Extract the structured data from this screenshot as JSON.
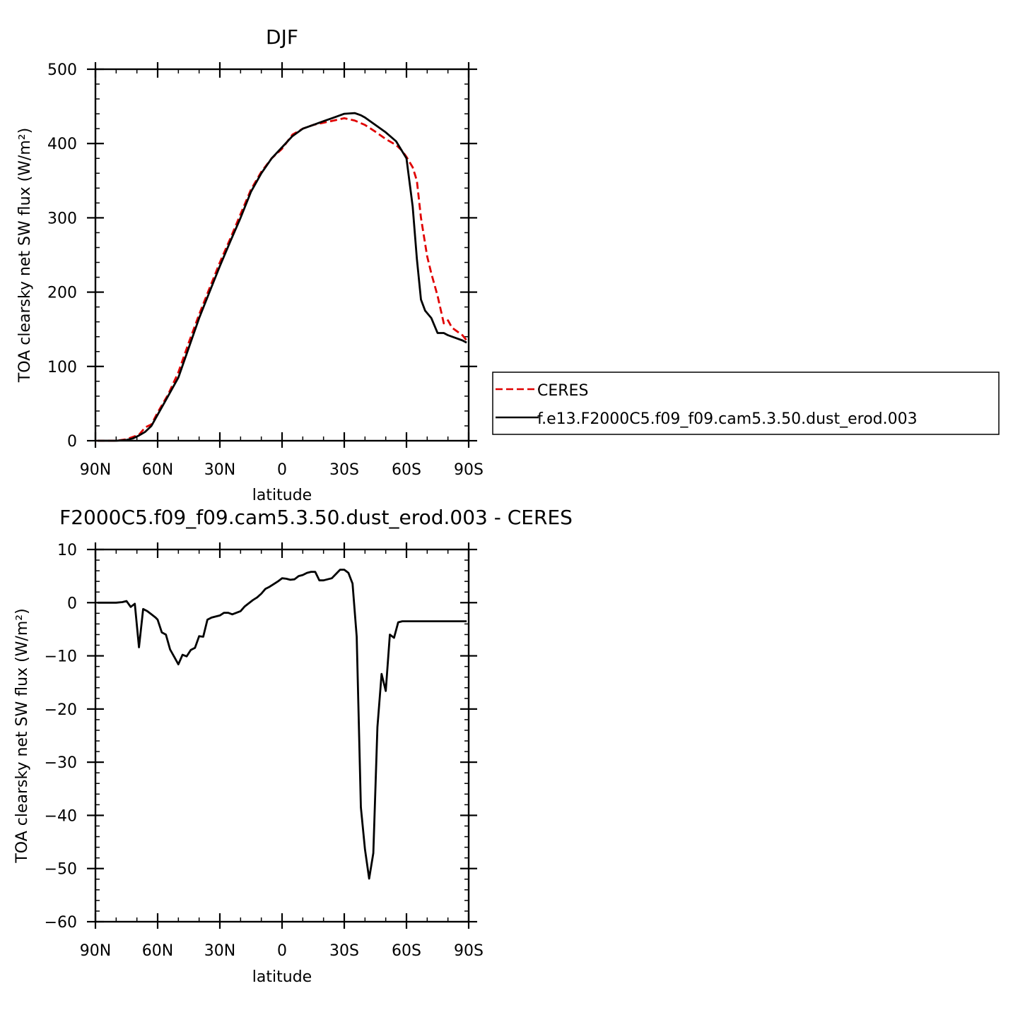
{
  "chart_data": [
    {
      "type": "line",
      "title": "DJF",
      "xlabel": "latitude",
      "ylabel": "TOA clearsky net SW flux (W/m²)",
      "xlim": [
        90,
        -90
      ],
      "ylim": [
        0,
        500
      ],
      "xticks": [
        {
          "v": 90,
          "label": "90N"
        },
        {
          "v": 60,
          "label": "60N"
        },
        {
          "v": 30,
          "label": "30N"
        },
        {
          "v": 0,
          "label": "0"
        },
        {
          "v": -30,
          "label": "30S"
        },
        {
          "v": -60,
          "label": "60S"
        },
        {
          "v": -90,
          "label": "90S"
        }
      ],
      "yticks": [
        0,
        100,
        200,
        300,
        400,
        500
      ],
      "grid": false,
      "legend": "right, outside",
      "series": [
        {
          "name": "CERES",
          "color": "#e00000",
          "dash": "dashed",
          "x": [
            89,
            85,
            80,
            75,
            72,
            69,
            66,
            63,
            60,
            55,
            50,
            45,
            40,
            35,
            30,
            25,
            20,
            15,
            10,
            5,
            0,
            -5,
            -10,
            -15,
            -20,
            -25,
            -30,
            -35,
            -40,
            -45,
            -50,
            -55,
            -58,
            -60,
            -63,
            -65,
            -67,
            -70,
            -72,
            -75,
            -78,
            -80,
            -82,
            -84,
            -87,
            -89
          ],
          "y": [
            0,
            0,
            0,
            2,
            5,
            8,
            18,
            22,
            38,
            62,
            92,
            132,
            170,
            205,
            240,
            272,
            305,
            338,
            362,
            380,
            393,
            412,
            420,
            425,
            428,
            431,
            434,
            431,
            425,
            416,
            406,
            398,
            390,
            382,
            368,
            350,
            300,
            248,
            225,
            195,
            158,
            162,
            152,
            148,
            142,
            135
          ]
        },
        {
          "name": "f.e13.F2000C5.f09_f09.cam5.3.50.dust_erod.003",
          "color": "#000000",
          "dash": "solid",
          "x": [
            89,
            85,
            80,
            75,
            72,
            69,
            66,
            63,
            60,
            55,
            50,
            45,
            40,
            35,
            30,
            25,
            20,
            15,
            10,
            5,
            0,
            -5,
            -10,
            -15,
            -20,
            -25,
            -30,
            -35,
            -38,
            -40,
            -45,
            -50,
            -55,
            -60,
            -63,
            -65,
            -67,
            -69,
            -72,
            -75,
            -78,
            -80,
            -82,
            -84,
            -87,
            -89
          ],
          "y": [
            0,
            0,
            0,
            1,
            3,
            7,
            12,
            20,
            35,
            60,
            85,
            125,
            165,
            200,
            235,
            268,
            300,
            335,
            360,
            380,
            395,
            410,
            420,
            425,
            430,
            435,
            440,
            441,
            438,
            435,
            425,
            415,
            403,
            380,
            315,
            245,
            190,
            175,
            165,
            145,
            145,
            142,
            140,
            138,
            135,
            132
          ]
        }
      ]
    },
    {
      "type": "line",
      "title": "F2000C5.f09_f09.cam5.3.50.dust_erod.003 - CERES",
      "xlabel": "latitude",
      "ylabel": "TOA clearsky net SW flux (W/m²)",
      "xlim": [
        90,
        -90
      ],
      "ylim": [
        -60,
        10
      ],
      "xticks": [
        {
          "v": 90,
          "label": "90N"
        },
        {
          "v": 60,
          "label": "60N"
        },
        {
          "v": 30,
          "label": "30N"
        },
        {
          "v": 0,
          "label": "0"
        },
        {
          "v": -30,
          "label": "30S"
        },
        {
          "v": -60,
          "label": "60S"
        },
        {
          "v": -90,
          "label": "90S"
        }
      ],
      "yticks": [
        -60,
        -50,
        -40,
        -30,
        -20,
        -10,
        0,
        10
      ],
      "grid": false,
      "series": [
        {
          "name": "",
          "color": "#000000",
          "dash": "solid",
          "x": [
            89,
            85,
            80,
            77,
            75,
            73,
            71,
            69,
            67,
            65,
            63,
            61,
            60,
            58,
            56,
            54,
            52,
            50,
            48,
            46,
            44,
            42,
            40,
            38,
            36,
            34,
            32,
            30,
            28,
            26,
            24,
            20,
            18,
            16,
            14,
            12,
            10,
            8,
            6,
            4,
            2,
            0,
            -2,
            -4,
            -6,
            -8,
            -10,
            -12,
            -14,
            -16,
            -18,
            -20,
            -22,
            -24,
            -26,
            -28,
            -30,
            -32,
            -34,
            -36,
            -38,
            -40,
            -42,
            -44,
            -46,
            -48,
            -50,
            -52,
            -54,
            -56,
            -58,
            -60,
            -62,
            -64,
            -66,
            -68,
            -70,
            -72,
            -74,
            -76,
            -78,
            -80,
            -82,
            -84,
            -86,
            -88,
            -89
          ],
          "y": [
            0,
            0,
            0,
            0.1,
            0.3,
            -0.8,
            -0.2,
            -8.4,
            -1.2,
            -1.6,
            -2.2,
            -2.8,
            -3.2,
            -5.6,
            -6.0,
            -8.8,
            -10.2,
            -11.6,
            -9.8,
            -10.1,
            -8.9,
            -8.5,
            -6.3,
            -6.4,
            -3.2,
            -2.8,
            -2.6,
            -2.4,
            -1.9,
            -1.9,
            -2.2,
            -1.6,
            -0.7,
            -0.1,
            0.5,
            1.0,
            1.7,
            2.6,
            3.0,
            3.5,
            4.0,
            4.6,
            4.5,
            4.3,
            4.4,
            5.0,
            5.2,
            5.6,
            5.8,
            5.8,
            4.2,
            4.2,
            4.4,
            4.6,
            5.4,
            6.2,
            6.2,
            5.6,
            3.6,
            -6.4,
            -38.5,
            -46.4,
            -51.9,
            -47.1,
            -23.4,
            -13.4,
            -16.6,
            -6.0,
            -6.6,
            -3.7,
            -3.5,
            -3.5,
            -3.5,
            -3.5,
            -3.5,
            -3.5,
            -3.5,
            -3.5,
            -3.5,
            -3.5,
            -3.5,
            -3.5,
            -3.5,
            -3.5,
            -3.5,
            -3.5,
            -3.5
          ]
        }
      ]
    }
  ]
}
